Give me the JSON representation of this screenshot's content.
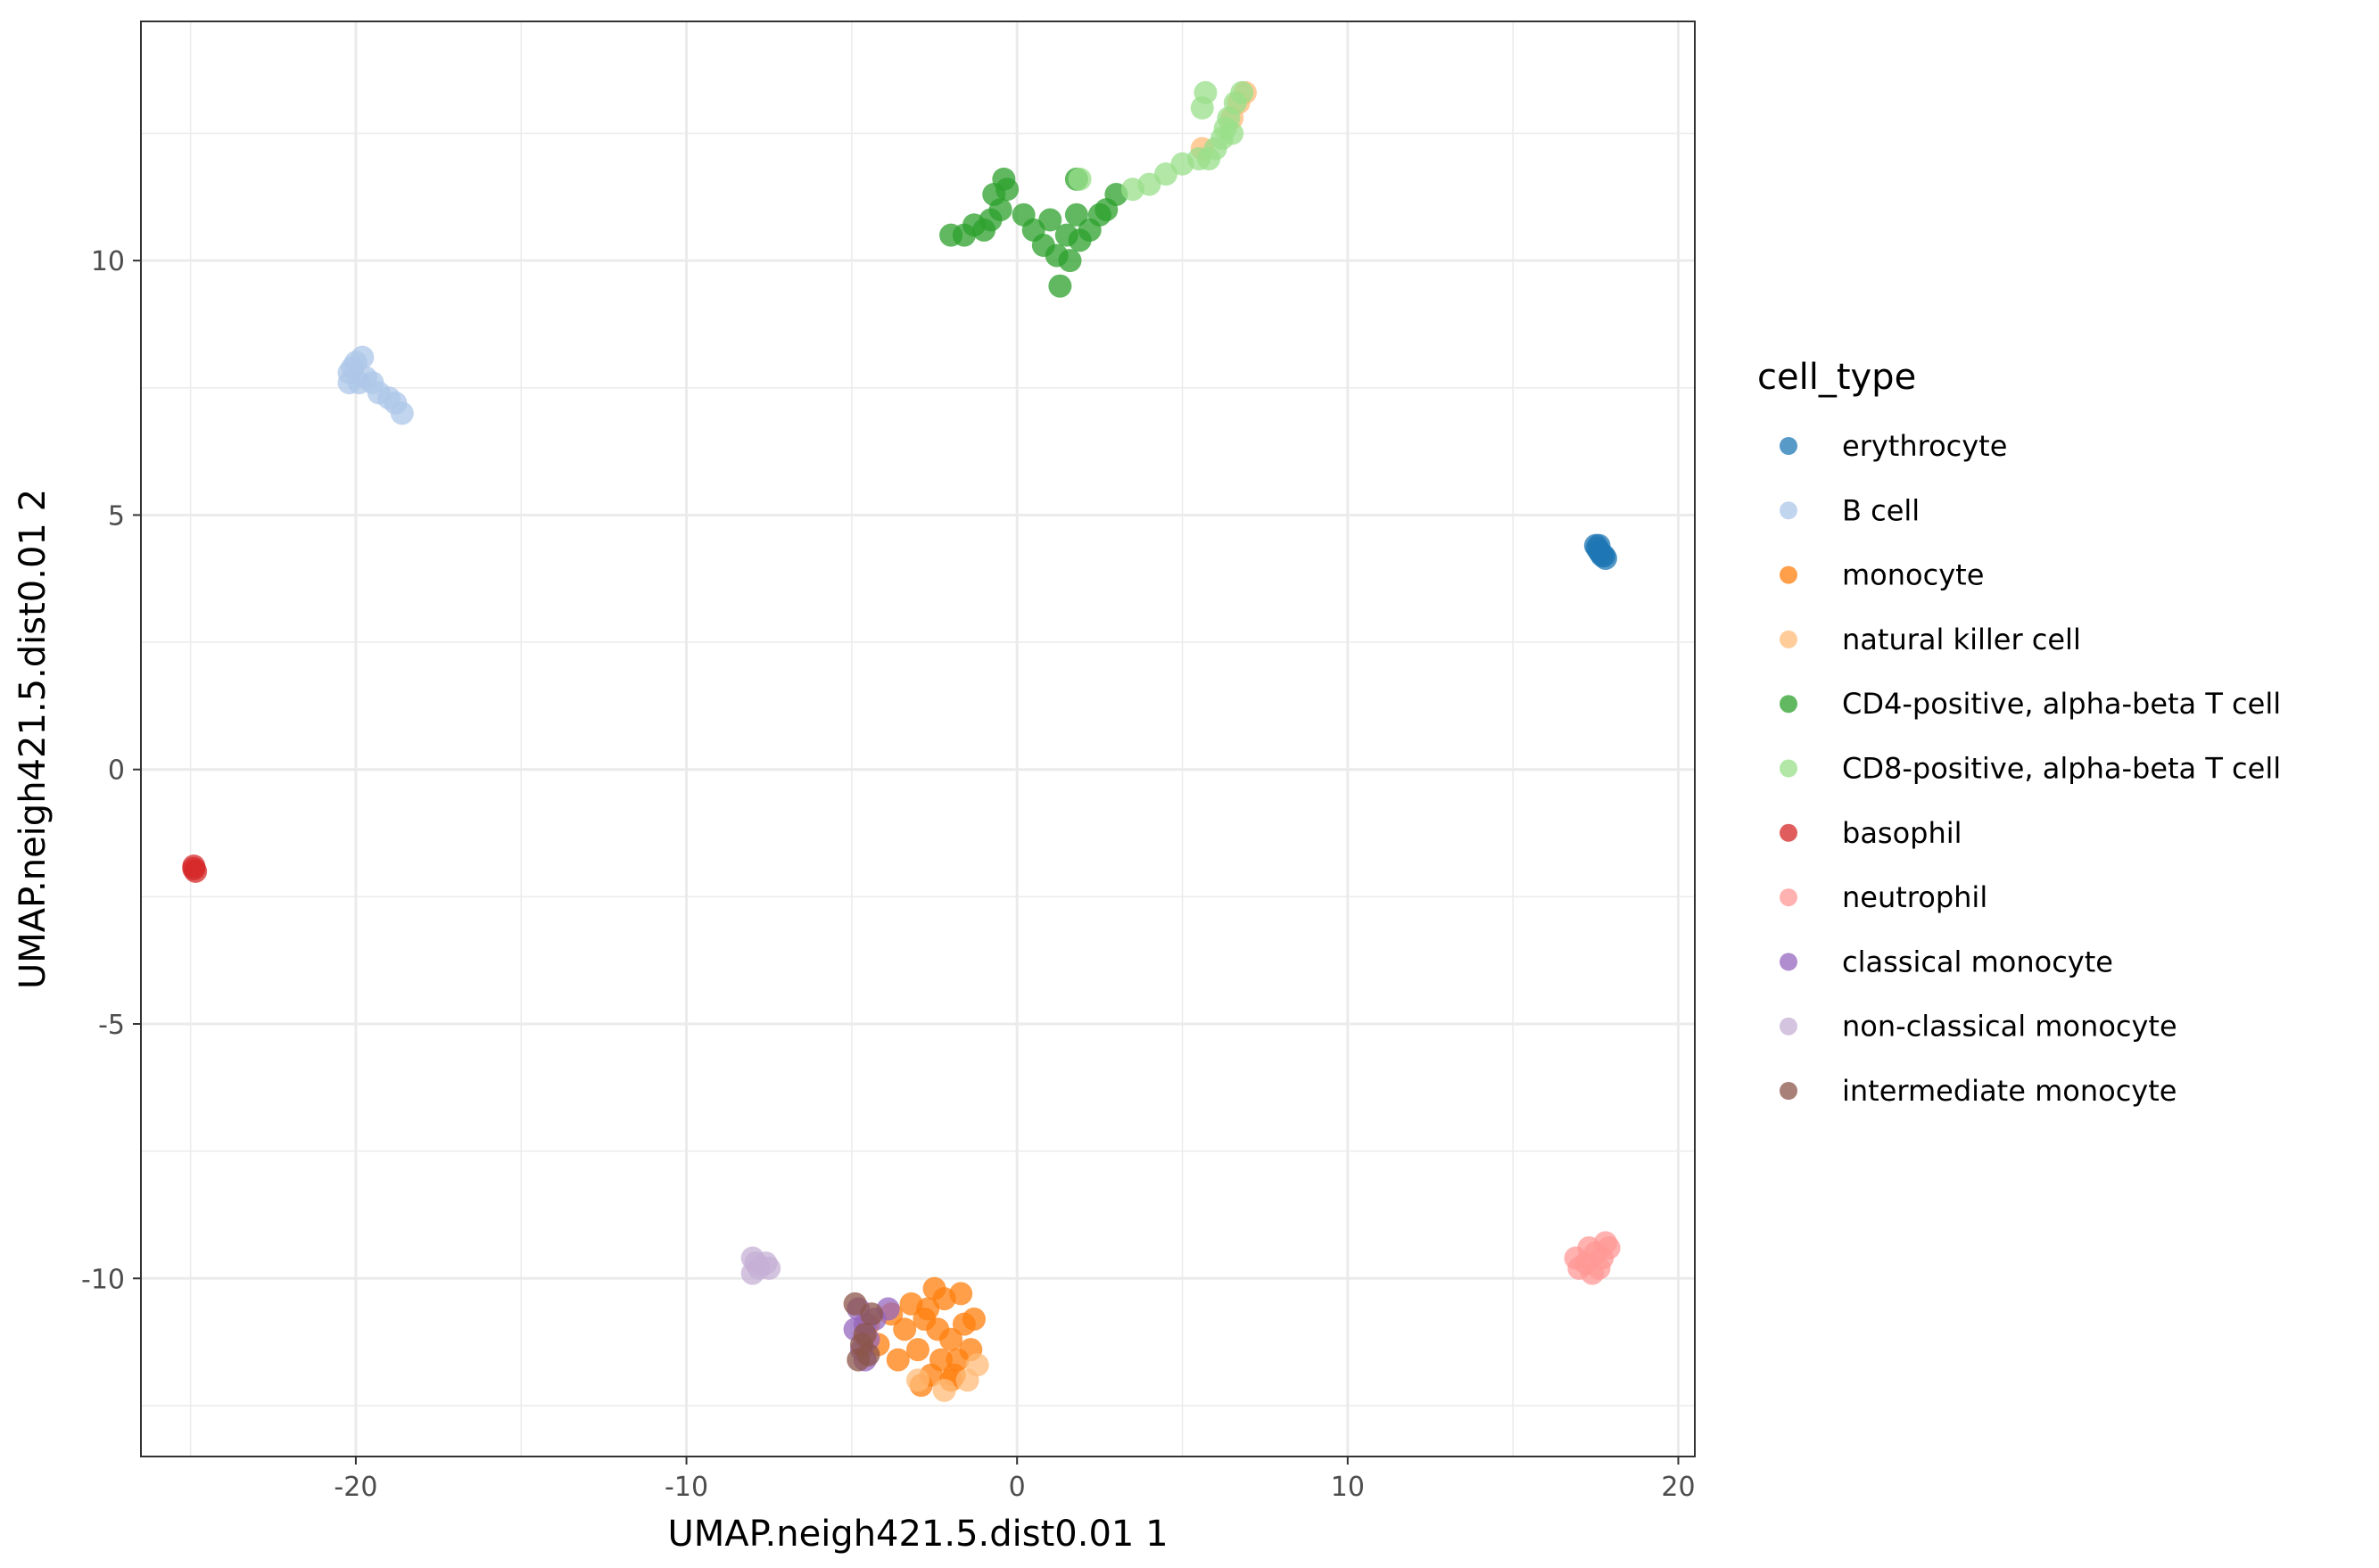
{
  "chart_data": {
    "type": "scatter",
    "xlabel": "UMAP.neigh421.5.dist0.01 1",
    "ylabel": "UMAP.neigh421.5.dist0.01 2",
    "xlim": [
      -26.5,
      20.5
    ],
    "ylim": [
      -13.5,
      14.7
    ],
    "x_ticks": [
      -20,
      -10,
      0,
      10,
      20
    ],
    "y_ticks": [
      -10,
      -5,
      0,
      5,
      10
    ],
    "x_tick_labels": [
      "-20",
      "-10",
      "0",
      "10",
      "20"
    ],
    "y_tick_labels": [
      "-10",
      "-5",
      "0",
      "5",
      "10"
    ],
    "grid": true,
    "legend": {
      "title": "cell_type",
      "position": "right"
    },
    "series": [
      {
        "name": "erythrocyte",
        "color": "#1f77b4",
        "points": [
          [
            17.5,
            4.4
          ],
          [
            17.6,
            4.3
          ],
          [
            17.7,
            4.2
          ],
          [
            17.8,
            4.15
          ],
          [
            17.55,
            4.35
          ],
          [
            17.65,
            4.25
          ],
          [
            17.75,
            4.2
          ],
          [
            17.6,
            4.4
          ]
        ]
      },
      {
        "name": "B cell",
        "color": "#aec7e8",
        "points": [
          [
            -20.0,
            8.0
          ],
          [
            -20.2,
            7.8
          ],
          [
            -19.9,
            7.6
          ],
          [
            -20.1,
            7.9
          ],
          [
            -19.7,
            7.7
          ],
          [
            -19.5,
            7.6
          ],
          [
            -19.3,
            7.4
          ],
          [
            -19.0,
            7.3
          ],
          [
            -18.8,
            7.2
          ],
          [
            -18.6,
            7.0
          ],
          [
            -20.2,
            7.6
          ],
          [
            -19.8,
            8.1
          ]
        ]
      },
      {
        "name": "monocyte",
        "color": "#ff7f0e",
        "points": [
          [
            -2.4,
            -11.0
          ],
          [
            -2.0,
            -11.2
          ],
          [
            -2.8,
            -10.8
          ],
          [
            -1.8,
            -11.6
          ],
          [
            -3.0,
            -11.4
          ],
          [
            -2.2,
            -10.4
          ],
          [
            -1.6,
            -10.9
          ],
          [
            -2.6,
            -11.9
          ],
          [
            -3.4,
            -11.0
          ],
          [
            -1.4,
            -11.4
          ],
          [
            -2.0,
            -12.0
          ],
          [
            -3.2,
            -10.5
          ],
          [
            -2.5,
            -10.2
          ],
          [
            -1.7,
            -10.3
          ],
          [
            -3.6,
            -11.6
          ],
          [
            -1.3,
            -10.8
          ],
          [
            -2.9,
            -12.1
          ],
          [
            -2.3,
            -11.6
          ],
          [
            -2.7,
            -10.6
          ],
          [
            -1.9,
            -11.9
          ],
          [
            -4.2,
            -11.3
          ],
          [
            -3.8,
            -10.7
          ],
          [
            -4.5,
            -10.9
          ]
        ]
      },
      {
        "name": "natural killer cell",
        "color": "#ffbb78",
        "points": [
          [
            6.9,
            13.3
          ],
          [
            6.7,
            13.1
          ],
          [
            5.6,
            12.2
          ],
          [
            6.5,
            12.8
          ],
          [
            -1.5,
            -12.0
          ],
          [
            -3.0,
            -12.0
          ],
          [
            -2.2,
            -12.2
          ],
          [
            -1.2,
            -11.7
          ]
        ]
      },
      {
        "name": "CD4-positive, alpha-beta T cell",
        "color": "#2ca02c",
        "points": [
          [
            -0.7,
            11.3
          ],
          [
            -0.5,
            11.0
          ],
          [
            -0.8,
            10.8
          ],
          [
            -0.3,
            11.4
          ],
          [
            -1.0,
            10.6
          ],
          [
            -1.6,
            10.5
          ],
          [
            -2.0,
            10.5
          ],
          [
            -1.3,
            10.7
          ],
          [
            0.2,
            10.9
          ],
          [
            0.5,
            10.6
          ],
          [
            1.0,
            10.8
          ],
          [
            1.5,
            10.5
          ],
          [
            1.8,
            10.9
          ],
          [
            2.2,
            10.6
          ],
          [
            1.2,
            10.1
          ],
          [
            1.6,
            10.0
          ],
          [
            1.3,
            9.5
          ],
          [
            1.9,
            10.4
          ],
          [
            2.5,
            10.9
          ],
          [
            0.8,
            10.3
          ],
          [
            3.0,
            11.3
          ],
          [
            1.8,
            11.6
          ],
          [
            2.7,
            11.0
          ],
          [
            -0.4,
            11.6
          ]
        ]
      },
      {
        "name": "CD8-positive, alpha-beta T cell",
        "color": "#98df8a",
        "points": [
          [
            6.2,
            12.4
          ],
          [
            6.4,
            12.8
          ],
          [
            6.6,
            13.1
          ],
          [
            6.8,
            13.3
          ],
          [
            5.7,
            13.3
          ],
          [
            5.5,
            12.0
          ],
          [
            5.0,
            11.9
          ],
          [
            4.5,
            11.7
          ],
          [
            4.0,
            11.5
          ],
          [
            3.5,
            11.4
          ],
          [
            6.0,
            12.2
          ],
          [
            6.5,
            12.5
          ],
          [
            5.8,
            12.0
          ],
          [
            5.6,
            13.0
          ],
          [
            1.9,
            11.6
          ],
          [
            6.3,
            12.6
          ]
        ]
      },
      {
        "name": "basophil",
        "color": "#d62728",
        "points": [
          [
            -24.9,
            -1.9
          ],
          [
            -24.85,
            -2.0
          ],
          [
            -24.9,
            -1.95
          ]
        ]
      },
      {
        "name": "neutrophil",
        "color": "#ff9896",
        "points": [
          [
            17.2,
            -9.7
          ],
          [
            17.5,
            -9.5
          ],
          [
            17.8,
            -9.3
          ],
          [
            17.0,
            -9.8
          ],
          [
            17.4,
            -9.9
          ],
          [
            17.7,
            -9.6
          ],
          [
            17.9,
            -9.4
          ],
          [
            17.3,
            -9.4
          ],
          [
            16.9,
            -9.6
          ],
          [
            17.6,
            -9.8
          ]
        ]
      },
      {
        "name": "classical monocyte",
        "color": "#9467bd",
        "points": [
          [
            -4.8,
            -10.6
          ],
          [
            -4.6,
            -10.9
          ],
          [
            -4.5,
            -11.2
          ],
          [
            -4.7,
            -11.4
          ],
          [
            -4.3,
            -10.8
          ],
          [
            -4.9,
            -11.0
          ],
          [
            -3.9,
            -10.6
          ],
          [
            -4.6,
            -11.6
          ]
        ]
      },
      {
        "name": "non-classical monocyte",
        "color": "#c5b0d5",
        "points": [
          [
            -8.0,
            -9.6
          ],
          [
            -7.8,
            -9.8
          ],
          [
            -7.5,
            -9.8
          ],
          [
            -7.9,
            -9.7
          ],
          [
            -7.6,
            -9.7
          ],
          [
            -8.0,
            -9.9
          ]
        ]
      },
      {
        "name": "intermediate monocyte",
        "color": "#8c564b",
        "points": [
          [
            -4.8,
            -11.6
          ],
          [
            -4.9,
            -10.5
          ],
          [
            -4.6,
            -11.1
          ],
          [
            -4.4,
            -10.7
          ],
          [
            -4.7,
            -11.3
          ],
          [
            -4.5,
            -11.5
          ]
        ]
      }
    ]
  }
}
